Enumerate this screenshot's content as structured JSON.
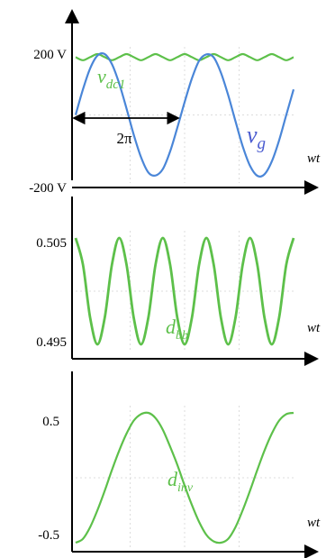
{
  "chart_data": [
    {
      "type": "line",
      "title": "",
      "xlabel": "wt",
      "ylabel": "",
      "ylim": [
        -200,
        200
      ],
      "yticks": [
        {
          "value": 200,
          "label": "200 V"
        },
        {
          "value": -200,
          "label": "-200 V"
        }
      ],
      "annotation": "2π",
      "grid": true,
      "series": [
        {
          "name": "v_dc1",
          "color": "#5dc04a",
          "x": [
            0,
            0.5,
            1,
            1.5,
            2,
            2.5,
            3,
            3.5,
            4,
            4.5,
            5,
            5.5,
            6,
            6.5,
            7,
            7.5,
            8,
            8.5,
            9,
            9.5,
            10,
            10.5,
            11,
            11.5,
            12,
            12.5,
            13,
            13.5,
            14,
            14.5,
            15
          ],
          "y": [
            190,
            180,
            190,
            200,
            190,
            180,
            190,
            200,
            190,
            180,
            190,
            200,
            190,
            180,
            190,
            200,
            190,
            180,
            190,
            200,
            190,
            180,
            190,
            200,
            190,
            180,
            190,
            200,
            190,
            180,
            190
          ]
        },
        {
          "name": "v_g",
          "color": "#4a86d8",
          "x": [
            0,
            0.5,
            1,
            1.5,
            2,
            2.5,
            3,
            3.5,
            4,
            4.5,
            5,
            5.5,
            6,
            6.5,
            7,
            7.5,
            8,
            8.5,
            9,
            9.5,
            10,
            10.5,
            11,
            11.5,
            12,
            12.5,
            13,
            13.5,
            14,
            14.5,
            15
          ],
          "y": [
            0,
            84,
            153,
            195,
            200,
            167,
            103,
            21,
            -65,
            -139,
            -189,
            -199,
            -178,
            -120,
            -42,
            42,
            120,
            178,
            199,
            189,
            139,
            65,
            -21,
            -103,
            -167,
            -200,
            -195,
            -153,
            -84,
            0,
            84
          ]
        }
      ]
    },
    {
      "type": "line",
      "title": "",
      "xlabel": "wt",
      "ylabel": "",
      "ylim": [
        0.495,
        0.505
      ],
      "yticks": [
        {
          "value": 0.505,
          "label": "0.505"
        },
        {
          "value": 0.495,
          "label": "0.495"
        }
      ],
      "grid": true,
      "series": [
        {
          "name": "d_bb",
          "color": "#5dc04a",
          "x": [
            0,
            0.5,
            1,
            1.5,
            2,
            2.5,
            3,
            3.5,
            4,
            4.5,
            5,
            5.5,
            6,
            6.5,
            7,
            7.5,
            8,
            8.5,
            9,
            9.5,
            10,
            10.5,
            11,
            11.5,
            12,
            12.5,
            13,
            13.5,
            14,
            14.5,
            15
          ],
          "y": [
            0.505,
            0.5025,
            0.4975,
            0.495,
            0.4975,
            0.5025,
            0.505,
            0.5025,
            0.4975,
            0.495,
            0.4975,
            0.5025,
            0.505,
            0.5025,
            0.4975,
            0.495,
            0.4975,
            0.5025,
            0.505,
            0.5025,
            0.4975,
            0.495,
            0.4975,
            0.5025,
            0.505,
            0.5025,
            0.4975,
            0.495,
            0.4975,
            0.5025,
            0.505
          ]
        }
      ]
    },
    {
      "type": "line",
      "title": "",
      "xlabel": "wt",
      "ylabel": "",
      "ylim": [
        -0.5,
        0.5
      ],
      "yticks": [
        {
          "value": 0.5,
          "label": "0.5"
        },
        {
          "value": -0.5,
          "label": "-0.5"
        }
      ],
      "grid": true,
      "series": [
        {
          "name": "d_inv",
          "color": "#5dc04a",
          "x": [
            0,
            0.5,
            1,
            1.5,
            2,
            2.5,
            3,
            3.5,
            4,
            4.5,
            5,
            5.5,
            6,
            6.5,
            7,
            7.5,
            8,
            8.5,
            9,
            9.5,
            10,
            10.5,
            11,
            11.5,
            12,
            12.5,
            13,
            13.5,
            14,
            14.5,
            15
          ],
          "y": [
            -0.5,
            -0.47,
            -0.38,
            -0.25,
            -0.1,
            0.06,
            0.21,
            0.34,
            0.44,
            0.49,
            0.5,
            0.46,
            0.37,
            0.24,
            0.1,
            -0.06,
            -0.21,
            -0.34,
            -0.44,
            -0.49,
            -0.5,
            -0.47,
            -0.38,
            -0.25,
            -0.1,
            0.06,
            0.21,
            0.34,
            0.44,
            0.49,
            0.5
          ]
        }
      ]
    }
  ],
  "labels": {
    "vdc1": {
      "main": "v",
      "sub": "dc1"
    },
    "vg": {
      "main": "v",
      "sub": "g"
    },
    "dbb": {
      "main": "d",
      "sub": "bb"
    },
    "dinv": {
      "main": "d",
      "sub": "inv"
    }
  }
}
